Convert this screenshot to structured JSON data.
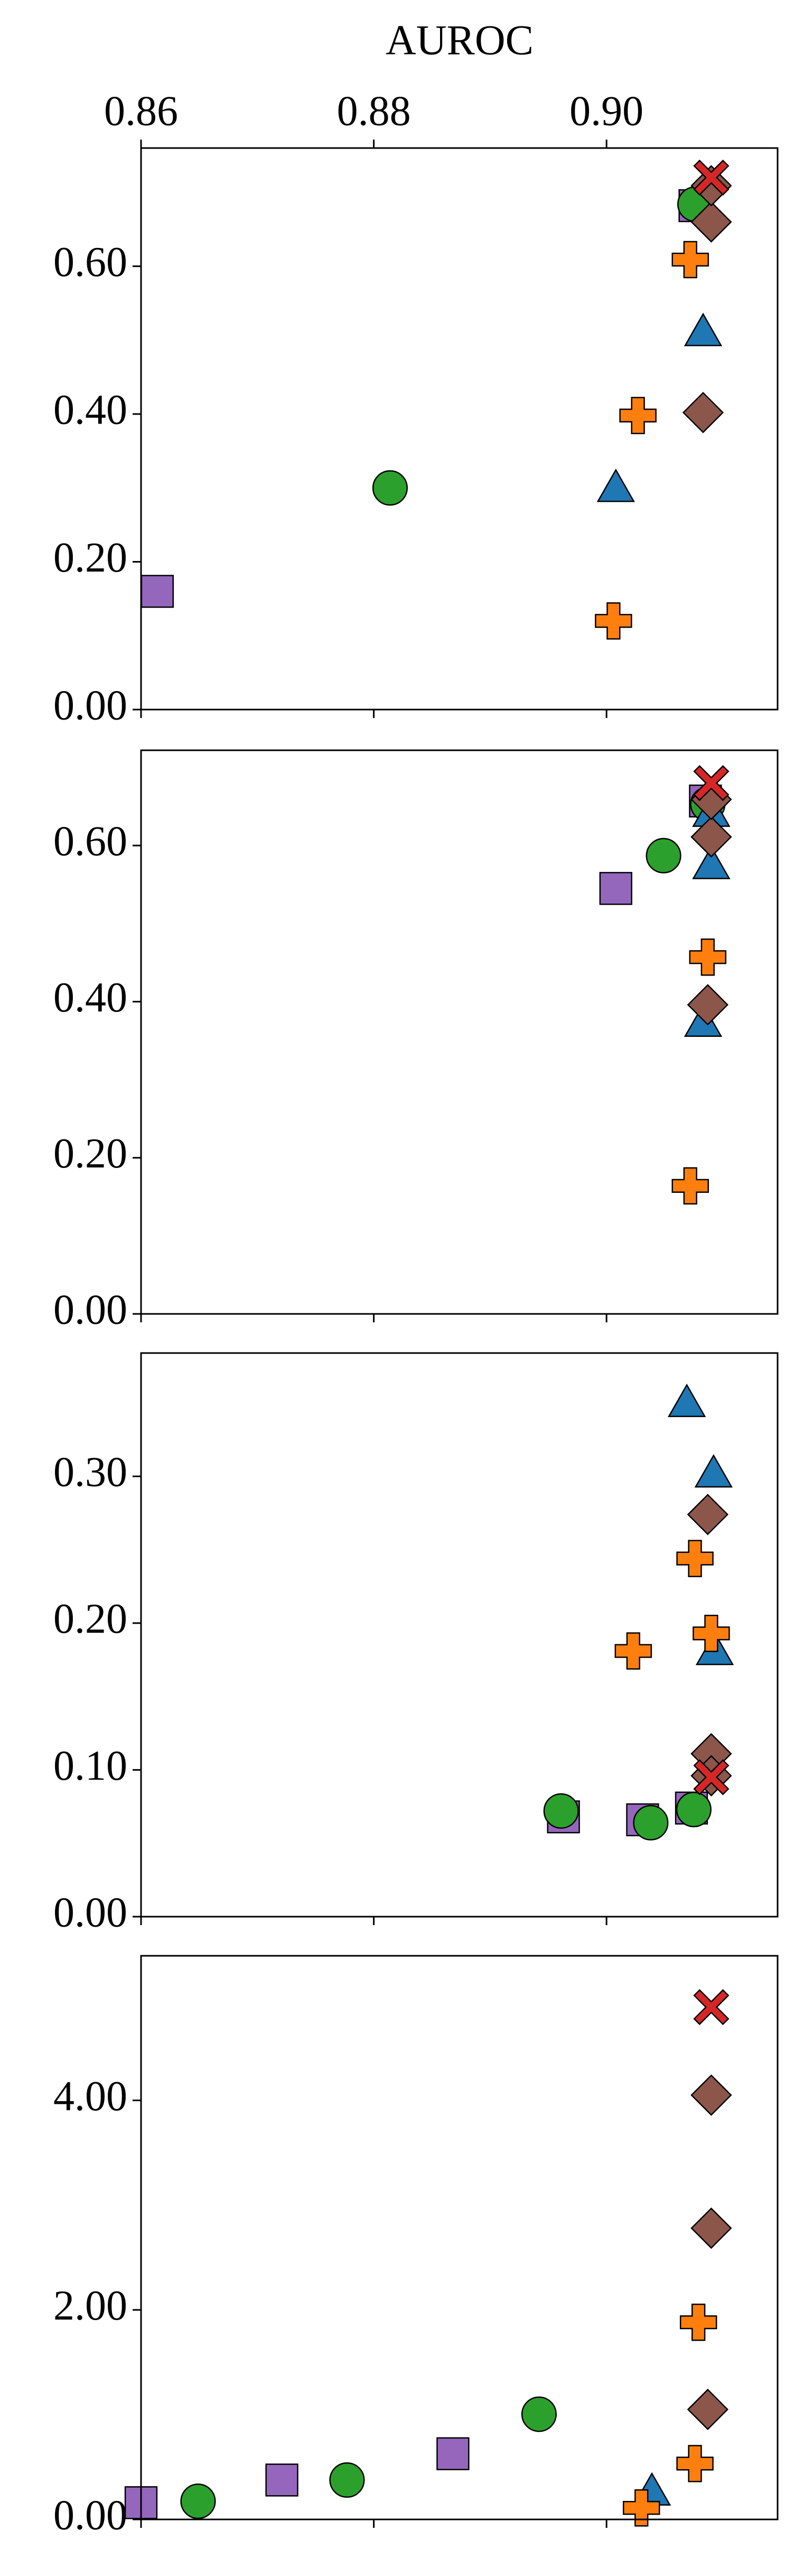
{
  "chart_data": [
    {
      "type": "scatter",
      "xlabel": "AUROC",
      "xlim": [
        0.86,
        0.9147
      ],
      "ylim": [
        0,
        0.76
      ],
      "xticks": [
        0.86,
        0.88,
        {
          "value": 0.9,
          "label": "0.90"
        }
      ],
      "yticks": [
        {
          "value": 0,
          "label": "0.00"
        },
        {
          "value": 0.2,
          "label": "0.20"
        },
        {
          "value": 0.4,
          "label": "0.40"
        },
        {
          "value": 0.6,
          "label": "0.60"
        }
      ],
      "series": [
        {
          "marker": "square",
          "color": "#9467bd",
          "x": [
            0.8614,
            0.9076
          ],
          "values": [
            0.16,
            0.682
          ]
        },
        {
          "marker": "circle",
          "color": "#2ca02c",
          "x": [
            0.8814,
            0.9076
          ],
          "values": [
            0.3,
            0.684
          ]
        },
        {
          "marker": "triangle",
          "color": "#1f77b4",
          "x": [
            0.9008,
            0.9083
          ],
          "values": [
            0.3,
            0.511
          ]
        },
        {
          "marker": "plus",
          "color": "#ff7f0e",
          "x": [
            0.9006,
            0.9027,
            0.9072
          ],
          "values": [
            0.12,
            0.398,
            0.609
          ]
        },
        {
          "marker": "diamond",
          "color": "#8c564b",
          "x": [
            0.9083,
            0.909,
            0.909
          ],
          "values": [
            0.402,
            0.66,
            0.709
          ]
        },
        {
          "marker": "x",
          "color": "#d62728",
          "x": [
            0.909
          ],
          "values": [
            0.72
          ]
        }
      ]
    },
    {
      "type": "scatter",
      "xlim": [
        0.86,
        0.9147
      ],
      "ylim": [
        0,
        0.722
      ],
      "xticks": [
        0.86,
        0.88,
        0.9
      ],
      "yticks": [
        {
          "value": 0,
          "label": "0.00"
        },
        {
          "value": 0.2,
          "label": "0.20"
        },
        {
          "value": 0.4,
          "label": "0.40"
        },
        {
          "value": 0.6,
          "label": "0.60"
        }
      ],
      "series": [
        {
          "marker": "square",
          "color": "#9467bd",
          "x": [
            0.9008,
            0.9085
          ],
          "values": [
            0.545,
            0.657
          ]
        },
        {
          "marker": "circle",
          "color": "#2ca02c",
          "x": [
            0.9049,
            0.9087
          ],
          "values": [
            0.587,
            0.653
          ]
        },
        {
          "marker": "triangle",
          "color": "#1f77b4",
          "x": [
            0.9083,
            0.909,
            0.909
          ],
          "values": [
            0.373,
            0.575,
            0.642
          ]
        },
        {
          "marker": "plus",
          "color": "#ff7f0e",
          "x": [
            0.9072,
            0.9087
          ],
          "values": [
            0.164,
            0.457
          ]
        },
        {
          "marker": "diamond",
          "color": "#8c564b",
          "x": [
            0.9087,
            0.909,
            0.909
          ],
          "values": [
            0.396,
            0.611,
            0.659
          ]
        },
        {
          "marker": "x",
          "color": "#d62728",
          "x": [
            0.909
          ],
          "values": [
            0.68
          ]
        }
      ]
    },
    {
      "type": "scatter",
      "xlim": [
        0.86,
        0.9147
      ],
      "ylim": [
        0,
        0.384
      ],
      "xticks": [
        0.86,
        0.88,
        0.9
      ],
      "yticks": [
        {
          "value": 0,
          "label": "0.00"
        },
        {
          "value": 0.1,
          "label": "0.10"
        },
        {
          "value": 0.2,
          "label": "0.20"
        },
        {
          "value": 0.3,
          "label": "0.30"
        }
      ],
      "series": [
        {
          "marker": "square",
          "color": "#9467bd",
          "x": [
            0.8963,
            0.9031,
            0.9073
          ],
          "values": [
            0.068,
            0.066,
            0.074
          ]
        },
        {
          "marker": "circle",
          "color": "#2ca02c",
          "x": [
            0.8961,
            0.9038,
            0.9075
          ],
          "values": [
            0.072,
            0.064,
            0.073
          ]
        },
        {
          "marker": "triangle",
          "color": "#1f77b4",
          "x": [
            0.9069,
            0.9092,
            0.9093
          ],
          "values": [
            0.35,
            0.302,
            0.181
          ]
        },
        {
          "marker": "plus",
          "color": "#ff7f0e",
          "x": [
            0.9023,
            0.9076,
            0.909
          ],
          "values": [
            0.181,
            0.244,
            0.193
          ]
        },
        {
          "marker": "diamond",
          "color": "#8c564b",
          "x": [
            0.9087,
            0.909,
            0.909
          ],
          "values": [
            0.274,
            0.111,
            0.096
          ]
        },
        {
          "marker": "x",
          "color": "#d62728",
          "x": [
            0.909
          ],
          "values": [
            0.095
          ]
        }
      ]
    },
    {
      "type": "scatter",
      "xlim": [
        0.86,
        0.9147
      ],
      "ylim": [
        0,
        5.38
      ],
      "xticks": [
        0.86,
        0.88,
        0.9
      ],
      "yticks": [
        {
          "value": 0,
          "label": "0.00"
        },
        {
          "value": 2,
          "label": "2.00"
        },
        {
          "value": 4,
          "label": "4.00"
        }
      ],
      "series": [
        {
          "marker": "square",
          "color": "#9467bd",
          "x": [
            0.86,
            0.8721,
            0.8868
          ],
          "values": [
            0.16,
            0.376,
            0.627
          ]
        },
        {
          "marker": "circle",
          "color": "#2ca02c",
          "x": [
            0.8649,
            0.8777,
            0.8942
          ],
          "values": [
            0.173,
            0.376,
            1.004
          ]
        },
        {
          "marker": "triangle",
          "color": "#1f77b4",
          "x": [
            0.9039
          ],
          "values": [
            0.267
          ]
        },
        {
          "marker": "plus",
          "color": "#ff7f0e",
          "x": [
            0.903,
            0.9076,
            0.9079
          ],
          "values": [
            0.11,
            0.533,
            1.882
          ]
        },
        {
          "marker": "diamond",
          "color": "#8c564b",
          "x": [
            0.9087,
            0.909,
            0.909
          ],
          "values": [
            1.05,
            2.78,
            4.05
          ]
        },
        {
          "marker": "x",
          "color": "#d62728",
          "x": [
            0.909
          ],
          "values": [
            4.89
          ]
        }
      ]
    }
  ]
}
